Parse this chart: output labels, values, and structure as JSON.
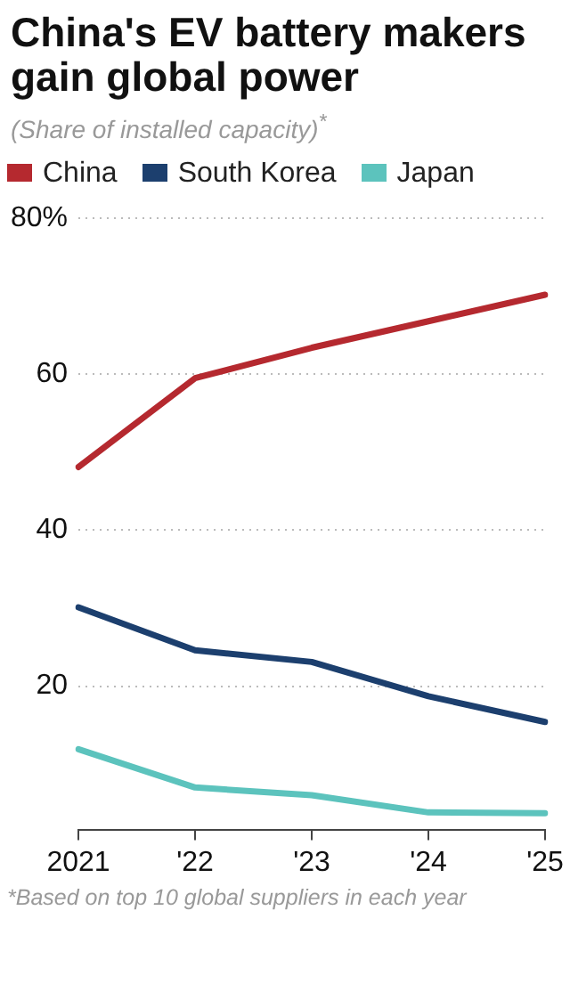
{
  "chart_data": {
    "type": "line",
    "title": "China's EV battery makers gain global power",
    "subtitle": "(Share of installed capacity)$^{*}$",
    "categories": [
      "2021",
      "'22",
      "'23",
      "'24",
      "'25"
    ],
    "series": [
      {
        "name": "China",
        "color": "#b5292f",
        "values": [
          48.1,
          59.5,
          63.4,
          66.8,
          70.2
        ]
      },
      {
        "name": "South Korea",
        "color": "#1c3f6e",
        "values": [
          30.1,
          24.6,
          23.1,
          18.7,
          15.4
        ]
      },
      {
        "name": "Japan",
        "color": "#5cc3bd",
        "values": [
          11.9,
          7.0,
          6.0,
          3.8,
          3.7
        ]
      }
    ],
    "ylim": [
      1.6,
      80
    ],
    "yticks": [
      20,
      40,
      60,
      {
        "value": 80,
        "label": "80%"
      }
    ],
    "grid": "y",
    "legend": "top",
    "marker": "none",
    "line_style": "solid",
    "annotations": [
      "*Based on top 10 global suppliers in each year"
    ]
  }
}
